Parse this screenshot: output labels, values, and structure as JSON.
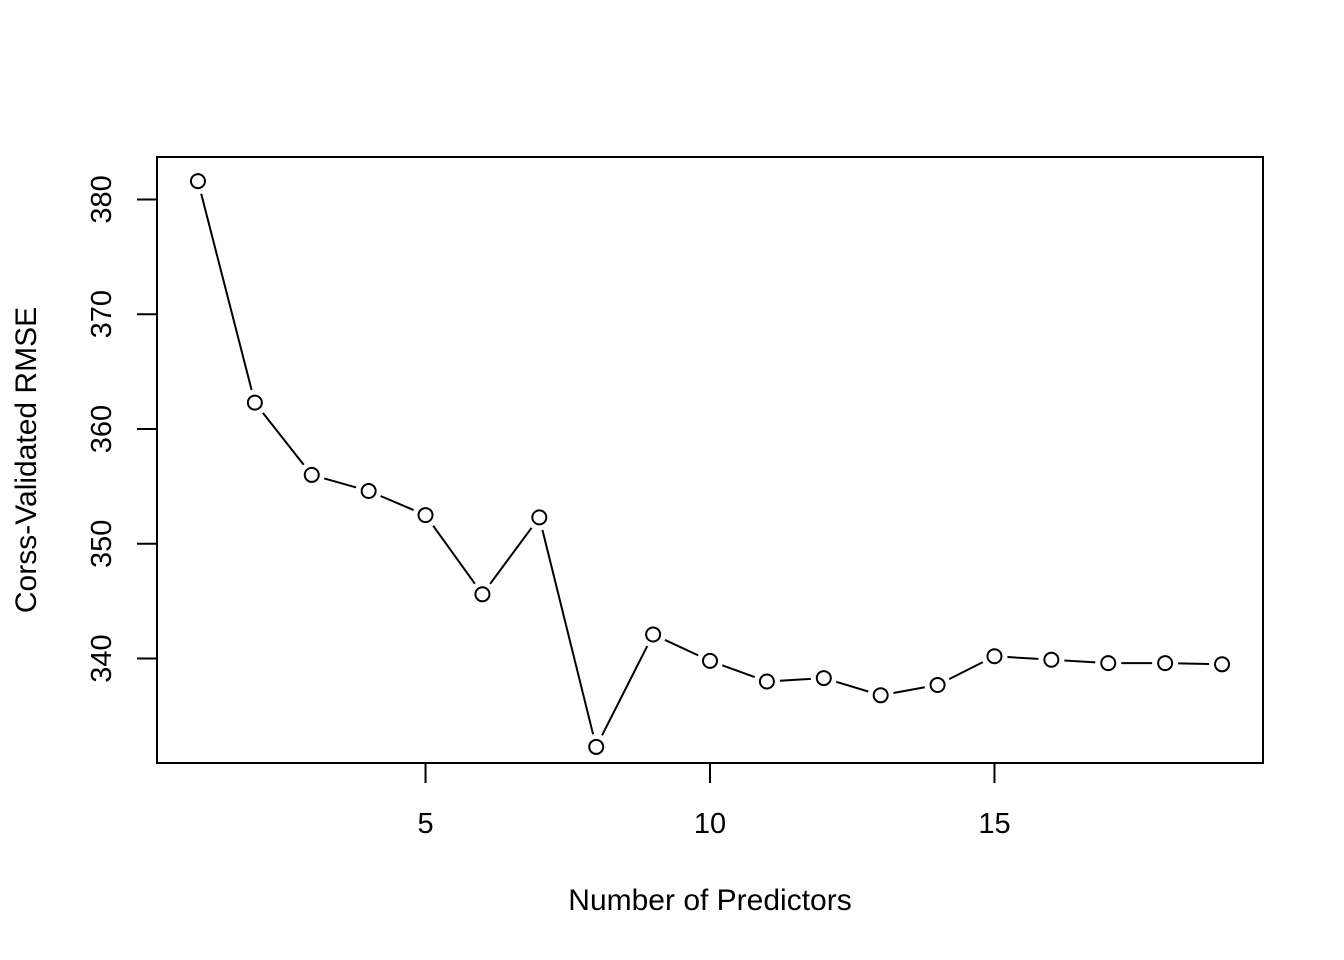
{
  "chart_data": {
    "type": "line",
    "title": "",
    "xlabel": "Number of Predictors",
    "ylabel": "Corss-Validated RMSE",
    "x": [
      1,
      2,
      3,
      4,
      5,
      6,
      7,
      8,
      9,
      10,
      11,
      12,
      13,
      14,
      15,
      16,
      17,
      18,
      19
    ],
    "series": [
      {
        "values": [
          381.6,
          362.3,
          356.0,
          354.6,
          352.5,
          345.6,
          352.3,
          332.3,
          342.1,
          339.8,
          338.0,
          338.3,
          336.8,
          337.7,
          340.2,
          339.9,
          339.6,
          339.6,
          339.5
        ]
      }
    ],
    "xticks": [
      5,
      10,
      15
    ],
    "yticks": [
      340,
      350,
      360,
      370,
      380
    ],
    "xlim": [
      0.28,
      19.72
    ],
    "ylim": [
      330.9,
      383.7
    ],
    "marker": "open-circle",
    "grid": false,
    "legend": "none",
    "colors": {
      "line": "#000000",
      "marker_stroke": "#000000",
      "marker_fill": "#ffffff",
      "background": "#ffffff"
    }
  }
}
